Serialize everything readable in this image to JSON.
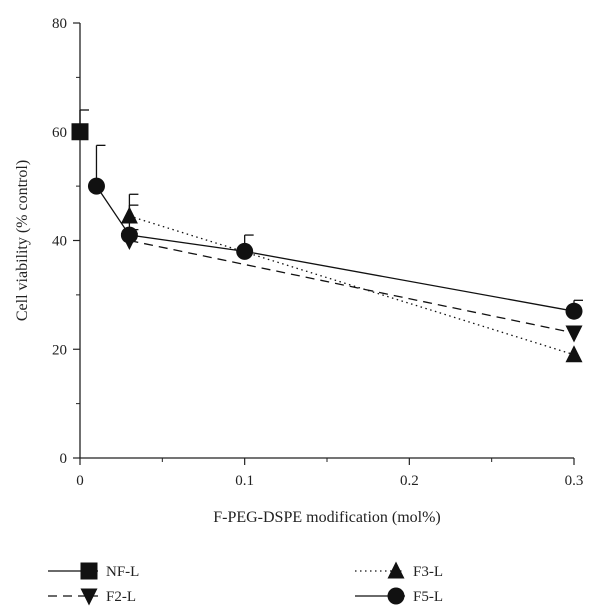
{
  "chart_data": {
    "type": "line",
    "title": "",
    "xlabel": "F-PEG-DSPE modification (mol%)",
    "ylabel": "Cell viability (% control)",
    "xlim": [
      0,
      0.3
    ],
    "ylim": [
      0,
      80
    ],
    "x_ticks": [
      0,
      0.1,
      0.2,
      0.3
    ],
    "x_tick_labels": [
      "0",
      "0.1",
      "0.2",
      "0.3"
    ],
    "y_ticks": [
      0,
      20,
      40,
      60,
      80
    ],
    "y_tick_labels": [
      "0",
      "20",
      "40",
      "60",
      "80"
    ],
    "grid": false,
    "legend_position": "bottom",
    "series": [
      {
        "name": "NF-L",
        "marker": "square",
        "line": "solid",
        "x": [
          0
        ],
        "y": [
          60
        ],
        "error": [
          4
        ]
      },
      {
        "name": "F2-L",
        "marker": "triangle-down",
        "line": "dashed",
        "x": [
          0.03,
          0.3
        ],
        "y": [
          40,
          23
        ],
        "error": [
          2,
          0
        ]
      },
      {
        "name": "F3-L",
        "marker": "triangle-up",
        "line": "dotted",
        "x": [
          0.03,
          0.3
        ],
        "y": [
          44.5,
          19
        ],
        "error": [
          4,
          0
        ]
      },
      {
        "name": "F5-L",
        "marker": "circle",
        "line": "solid",
        "x": [
          0.01,
          0.03,
          0.1,
          0.3
        ],
        "y": [
          50,
          41,
          38,
          27
        ],
        "error": [
          7.5,
          5.5,
          3,
          2
        ]
      }
    ]
  }
}
